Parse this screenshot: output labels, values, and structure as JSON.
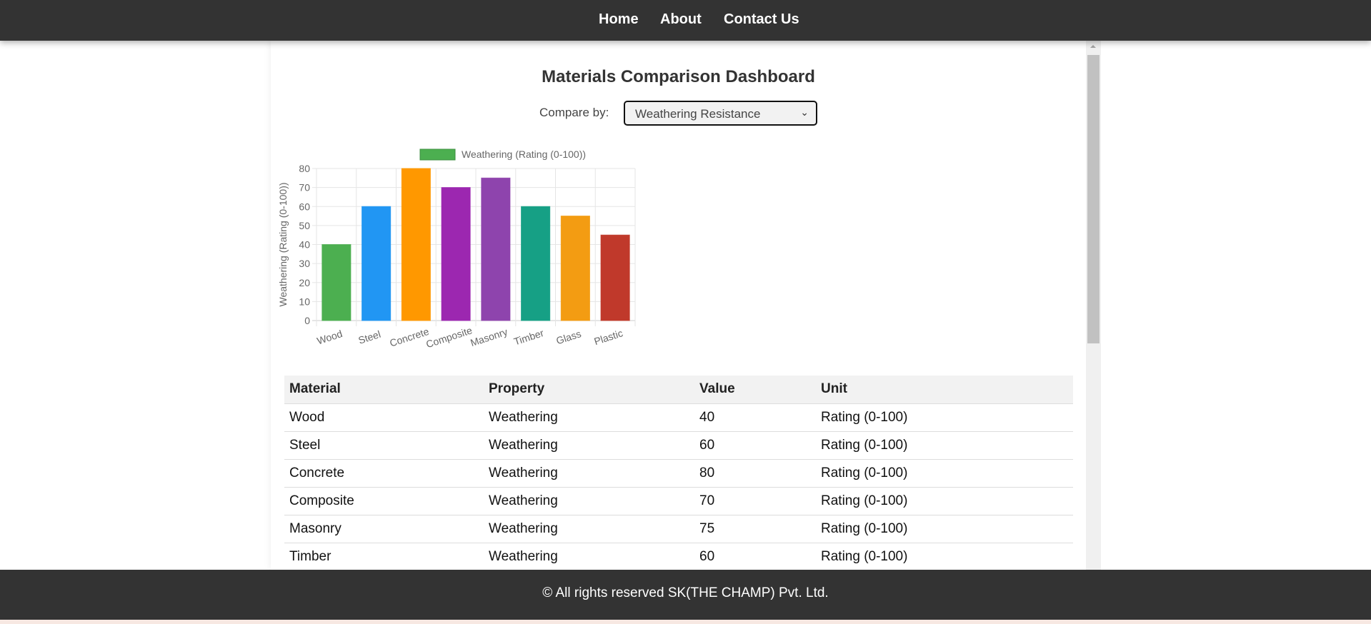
{
  "nav": {
    "items": [
      "Home",
      "About",
      "Contact Us"
    ]
  },
  "page_title": "Materials Comparison Dashboard",
  "compare": {
    "label": "Compare by:",
    "selected": "Weathering Resistance"
  },
  "chart_data": {
    "type": "bar",
    "categories": [
      "Wood",
      "Steel",
      "Concrete",
      "Composite",
      "Masonry",
      "Timber",
      "Glass",
      "Plastic"
    ],
    "series": [
      {
        "name": "Weathering (Rating (0-100))",
        "values": [
          40,
          60,
          80,
          70,
          75,
          60,
          55,
          45
        ]
      }
    ],
    "colors": [
      "#4caf50",
      "#2196f3",
      "#ff9800",
      "#9c27b0",
      "#8e44ad",
      "#16a085",
      "#f39c12",
      "#c0392b"
    ],
    "ylabel": "Weathering (Rating (0-100))",
    "ylim": [
      0,
      80
    ],
    "yticks": [
      0,
      10,
      20,
      30,
      40,
      50,
      60,
      70,
      80
    ],
    "grid": true,
    "legend": "top"
  },
  "table": {
    "headers": [
      "Material",
      "Property",
      "Value",
      "Unit"
    ],
    "rows": [
      [
        "Wood",
        "Weathering",
        "40",
        "Rating (0-100)"
      ],
      [
        "Steel",
        "Weathering",
        "60",
        "Rating (0-100)"
      ],
      [
        "Concrete",
        "Weathering",
        "80",
        "Rating (0-100)"
      ],
      [
        "Composite",
        "Weathering",
        "70",
        "Rating (0-100)"
      ],
      [
        "Masonry",
        "Weathering",
        "75",
        "Rating (0-100)"
      ],
      [
        "Timber",
        "Weathering",
        "60",
        "Rating (0-100)"
      ]
    ]
  },
  "footer": "© All rights reserved SK(THE CHAMP) Pvt. Ltd."
}
